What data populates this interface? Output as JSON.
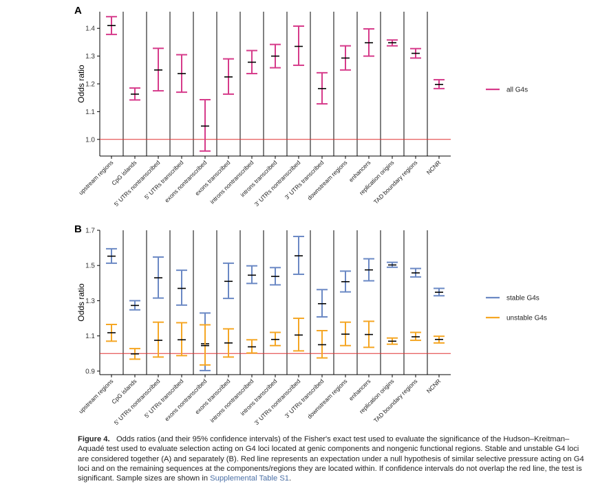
{
  "figure": {
    "caption_label": "Figure 4.",
    "caption_text": "Odds ratios (and their 95% confidence intervals) of the Fisher's exact test used to evaluate the significance of the Hudson–Kreitman–Aquadé test used to evaluate selection acting on G4 loci located at genic components and nongenic functional regions. Stable and unstable G4 loci are considered together (A) and separately (B). Red line represents an expectation under a null hypothesis of similar selective pressure acting on G4 loci and on the remaining sequences at the components/regions they are located within. If confidence intervals do not overlap the red line, the test is significant. Sample sizes are shown in",
    "caption_link": "Supplemental Table S1",
    "caption_end": "."
  },
  "chart_data": [
    {
      "panel": "A",
      "type": "errorbar",
      "ylabel": "Odds ratio",
      "ylim": [
        0.94,
        1.46
      ],
      "yticks": [
        1.0,
        1.1,
        1.2,
        1.3,
        1.4
      ],
      "ytick_labels": [
        "1.0",
        "1.1",
        "1.2",
        "1.3",
        "1.4"
      ],
      "reference_line": 1.0,
      "reference_color": "#e03030",
      "legend_position": "right",
      "categories": [
        "upstream regions",
        "CpG islands",
        "5' UTRs nontranscribed",
        "5' UTRs transcribed",
        "exons nontranscribed",
        "exons transcribed",
        "introns nontranscribed",
        "introns transcribed",
        "3' UTRs nontranscribed",
        "3' UTRs transcribed",
        "downstream regions",
        "enhancers",
        "replication origins",
        "TAD boundary regions",
        "NCNR"
      ],
      "series": [
        {
          "name": "all G4s",
          "color": "#d63a8a",
          "estimate": [
            1.41,
            1.163,
            1.25,
            1.237,
            1.048,
            1.225,
            1.278,
            1.3,
            1.335,
            1.183,
            1.293,
            1.348,
            1.348,
            1.31,
            1.198
          ],
          "lower": [
            1.378,
            1.142,
            1.175,
            1.17,
            0.958,
            1.163,
            1.237,
            1.258,
            1.267,
            1.128,
            1.25,
            1.3,
            1.337,
            1.293,
            1.183
          ],
          "upper": [
            1.442,
            1.185,
            1.328,
            1.305,
            1.143,
            1.29,
            1.32,
            1.342,
            1.408,
            1.24,
            1.337,
            1.398,
            1.358,
            1.327,
            1.215
          ]
        }
      ]
    },
    {
      "panel": "B",
      "type": "errorbar",
      "ylabel": "Odds ratio",
      "ylim": [
        0.88,
        1.7
      ],
      "yticks": [
        0.9,
        1.1,
        1.3,
        1.5,
        1.7
      ],
      "ytick_labels": [
        "0.9",
        "1.1",
        "1.3",
        "1.5",
        "1.7"
      ],
      "reference_line": 1.0,
      "reference_color": "#e03030",
      "legend_position": "right",
      "categories": [
        "upstream regions",
        "CpG islands",
        "5' UTRs nontranscribed",
        "5' UTRs transcribed",
        "exons nontranscribed",
        "exons transcribed",
        "introns nontranscribed",
        "introns transcribed",
        "3' UTRs nontranscribed",
        "3' UTRs transcribed",
        "downstream regions",
        "enhancers",
        "replication origins",
        "TAD boundary regions",
        "NCNR"
      ],
      "series": [
        {
          "name": "stable G4s",
          "color": "#6a88c4",
          "estimate": [
            1.553,
            1.273,
            1.43,
            1.37,
            1.055,
            1.41,
            1.445,
            1.438,
            1.555,
            1.283,
            1.408,
            1.475,
            1.503,
            1.458,
            1.348
          ],
          "lower": [
            1.513,
            1.248,
            1.315,
            1.275,
            0.903,
            1.313,
            1.398,
            1.39,
            1.45,
            1.208,
            1.35,
            1.413,
            1.49,
            1.435,
            1.328
          ],
          "upper": [
            1.595,
            1.3,
            1.548,
            1.473,
            1.23,
            1.513,
            1.498,
            1.488,
            1.665,
            1.363,
            1.468,
            1.538,
            1.518,
            1.483,
            1.37
          ]
        },
        {
          "name": "unstable G4s",
          "color": "#f5a623",
          "estimate": [
            1.118,
            0.998,
            1.075,
            1.078,
            1.045,
            1.06,
            1.038,
            1.08,
            1.105,
            1.05,
            1.11,
            1.108,
            1.07,
            1.095,
            1.08
          ],
          "lower": [
            1.07,
            0.968,
            0.98,
            0.988,
            0.935,
            0.98,
            1.003,
            1.045,
            1.015,
            0.975,
            1.045,
            1.035,
            1.053,
            1.075,
            1.06
          ],
          "upper": [
            1.165,
            1.028,
            1.178,
            1.175,
            1.163,
            1.14,
            1.078,
            1.12,
            1.2,
            1.13,
            1.178,
            1.183,
            1.088,
            1.12,
            1.098
          ]
        }
      ]
    }
  ]
}
